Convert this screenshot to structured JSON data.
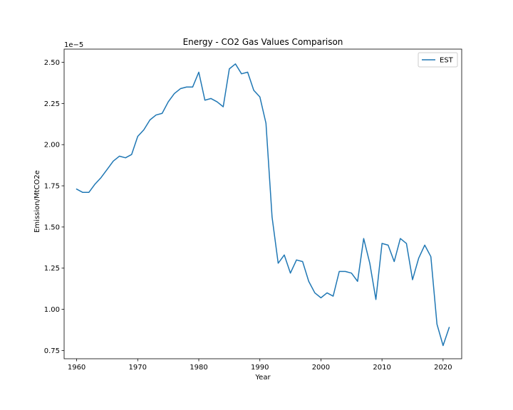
{
  "chart_data": {
    "type": "line",
    "title": "Energy - CO2 Gas Values Comparison",
    "xlabel": "Year",
    "ylabel": "Emission/MtCO2e",
    "y_offset_label": "1e−5",
    "y_scale_factor": 1e-05,
    "xlim": [
      1957.95,
      2023.05
    ],
    "ylim": [
      0.7,
      2.58
    ],
    "x_ticks": [
      1960,
      1970,
      1980,
      1990,
      2000,
      2010,
      2020
    ],
    "y_ticks": [
      0.75,
      1.0,
      1.25,
      1.5,
      1.75,
      2.0,
      2.25,
      2.5
    ],
    "y_tick_labels": [
      "0.75",
      "1.00",
      "1.25",
      "1.50",
      "1.75",
      "2.00",
      "2.25",
      "2.50"
    ],
    "grid": false,
    "legend_position": "upper right",
    "colors": {
      "EST": "#1f77b4"
    },
    "x": [
      1960,
      1961,
      1962,
      1963,
      1964,
      1965,
      1966,
      1967,
      1968,
      1969,
      1970,
      1971,
      1972,
      1973,
      1974,
      1975,
      1976,
      1977,
      1978,
      1979,
      1980,
      1981,
      1982,
      1983,
      1984,
      1985,
      1986,
      1987,
      1988,
      1989,
      1990,
      1991,
      1992,
      1993,
      1994,
      1995,
      1996,
      1997,
      1998,
      1999,
      2000,
      2001,
      2002,
      2003,
      2004,
      2005,
      2006,
      2007,
      2008,
      2009,
      2010,
      2011,
      2012,
      2013,
      2014,
      2015,
      2016,
      2017,
      2018,
      2019,
      2020,
      2021
    ],
    "series": [
      {
        "name": "EST",
        "values": [
          1.73,
          1.71,
          1.71,
          1.76,
          1.8,
          1.85,
          1.9,
          1.93,
          1.92,
          1.94,
          2.05,
          2.09,
          2.15,
          2.18,
          2.19,
          2.26,
          2.31,
          2.34,
          2.35,
          2.35,
          2.44,
          2.27,
          2.28,
          2.26,
          2.23,
          2.46,
          2.49,
          2.43,
          2.44,
          2.33,
          2.29,
          2.13,
          1.56,
          1.28,
          1.33,
          1.22,
          1.3,
          1.29,
          1.17,
          1.1,
          1.07,
          1.1,
          1.08,
          1.23,
          1.23,
          1.22,
          1.17,
          1.43,
          1.28,
          1.06,
          1.4,
          1.39,
          1.29,
          1.43,
          1.4,
          1.18,
          1.31,
          1.39,
          1.32,
          0.91,
          0.78,
          0.89
        ]
      }
    ]
  }
}
